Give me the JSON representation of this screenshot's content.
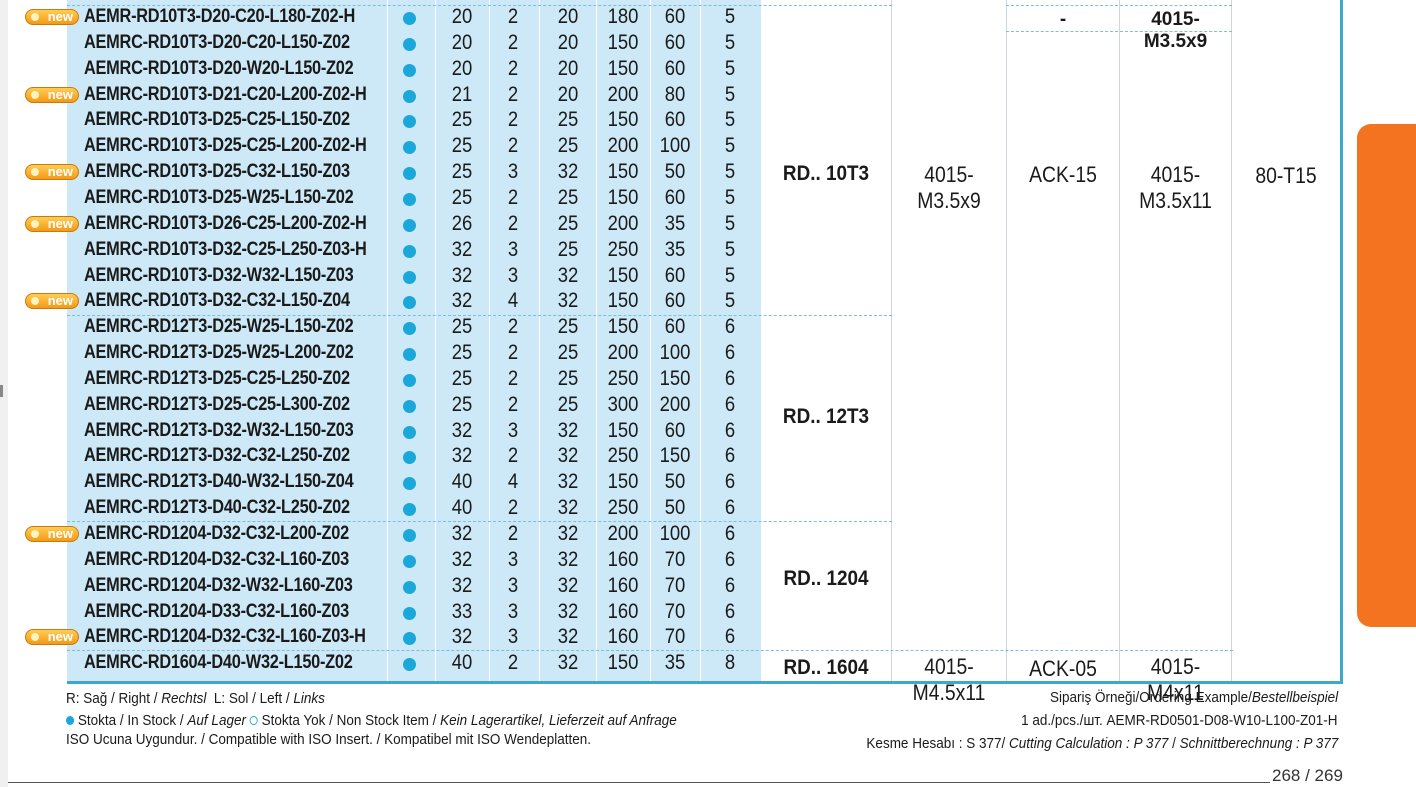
{
  "rows": [
    {
      "new": true,
      "code": "AEMR-RD10T3-D20-C20-L180-Z02-H",
      "d": "20",
      "z": "2",
      "d1": "20",
      "l": "180",
      "l1": "60",
      "s": "5"
    },
    {
      "new": false,
      "code": "AEMRC-RD10T3-D20-C20-L150-Z02",
      "d": "20",
      "z": "2",
      "d1": "20",
      "l": "150",
      "l1": "60",
      "s": "5"
    },
    {
      "new": false,
      "code": "AEMRC-RD10T3-D20-W20-L150-Z02",
      "d": "20",
      "z": "2",
      "d1": "20",
      "l": "150",
      "l1": "60",
      "s": "5"
    },
    {
      "new": true,
      "code": "AEMRC-RD10T3-D21-C20-L200-Z02-H",
      "d": "21",
      "z": "2",
      "d1": "20",
      "l": "200",
      "l1": "80",
      "s": "5"
    },
    {
      "new": false,
      "code": "AEMRC-RD10T3-D25-C25-L150-Z02",
      "d": "25",
      "z": "2",
      "d1": "25",
      "l": "150",
      "l1": "60",
      "s": "5"
    },
    {
      "new": false,
      "code": "AEMRC-RD10T3-D25-C25-L200-Z02-H",
      "d": "25",
      "z": "2",
      "d1": "25",
      "l": "200",
      "l1": "100",
      "s": "5"
    },
    {
      "new": true,
      "code": "AEMRC-RD10T3-D25-C32-L150-Z03",
      "d": "25",
      "z": "3",
      "d1": "32",
      "l": "150",
      "l1": "50",
      "s": "5"
    },
    {
      "new": false,
      "code": "AEMRC-RD10T3-D25-W25-L150-Z02",
      "d": "25",
      "z": "2",
      "d1": "25",
      "l": "150",
      "l1": "60",
      "s": "5"
    },
    {
      "new": true,
      "code": "AEMRC-RD10T3-D26-C25-L200-Z02-H",
      "d": "26",
      "z": "2",
      "d1": "25",
      "l": "200",
      "l1": "35",
      "s": "5"
    },
    {
      "new": false,
      "code": "AEMRC-RD10T3-D32-C25-L250-Z03-H",
      "d": "32",
      "z": "3",
      "d1": "25",
      "l": "250",
      "l1": "35",
      "s": "5"
    },
    {
      "new": false,
      "code": "AEMRC-RD10T3-D32-W32-L150-Z03",
      "d": "32",
      "z": "3",
      "d1": "32",
      "l": "150",
      "l1": "60",
      "s": "5"
    },
    {
      "new": true,
      "code": "AEMRC-RD10T3-D32-C32-L150-Z04",
      "d": "32",
      "z": "4",
      "d1": "32",
      "l": "150",
      "l1": "60",
      "s": "5"
    },
    {
      "new": false,
      "code": "AEMRC-RD12T3-D25-W25-L150-Z02",
      "d": "25",
      "z": "2",
      "d1": "25",
      "l": "150",
      "l1": "60",
      "s": "6"
    },
    {
      "new": false,
      "code": "AEMRC-RD12T3-D25-W25-L200-Z02",
      "d": "25",
      "z": "2",
      "d1": "25",
      "l": "200",
      "l1": "100",
      "s": "6"
    },
    {
      "new": false,
      "code": "AEMRC-RD12T3-D25-C25-L250-Z02",
      "d": "25",
      "z": "2",
      "d1": "25",
      "l": "250",
      "l1": "150",
      "s": "6"
    },
    {
      "new": false,
      "code": "AEMRC-RD12T3-D25-C25-L300-Z02",
      "d": "25",
      "z": "2",
      "d1": "25",
      "l": "300",
      "l1": "200",
      "s": "6"
    },
    {
      "new": false,
      "code": "AEMRC-RD12T3-D32-W32-L150-Z03",
      "d": "32",
      "z": "3",
      "d1": "32",
      "l": "150",
      "l1": "60",
      "s": "6"
    },
    {
      "new": false,
      "code": "AEMRC-RD12T3-D32-C32-L250-Z02",
      "d": "32",
      "z": "2",
      "d1": "32",
      "l": "250",
      "l1": "150",
      "s": "6"
    },
    {
      "new": false,
      "code": "AEMRC-RD12T3-D40-W32-L150-Z04",
      "d": "40",
      "z": "4",
      "d1": "32",
      "l": "150",
      "l1": "50",
      "s": "6"
    },
    {
      "new": false,
      "code": "AEMRC-RD12T3-D40-C32-L250-Z02",
      "d": "40",
      "z": "2",
      "d1": "32",
      "l": "250",
      "l1": "50",
      "s": "6"
    },
    {
      "new": true,
      "code": "AEMRC-RD1204-D32-C32-L200-Z02",
      "d": "32",
      "z": "2",
      "d1": "32",
      "l": "200",
      "l1": "100",
      "s": "6"
    },
    {
      "new": false,
      "code": "AEMRC-RD1204-D32-C32-L160-Z03",
      "d": "32",
      "z": "3",
      "d1": "32",
      "l": "160",
      "l1": "70",
      "s": "6"
    },
    {
      "new": false,
      "code": "AEMRC-RD1204-D32-W32-L160-Z03",
      "d": "32",
      "z": "3",
      "d1": "32",
      "l": "160",
      "l1": "70",
      "s": "6"
    },
    {
      "new": false,
      "code": "AEMRC-RD1204-D33-C32-L160-Z03",
      "d": "33",
      "z": "3",
      "d1": "32",
      "l": "160",
      "l1": "70",
      "s": "6"
    },
    {
      "new": true,
      "code": "AEMRC-RD1204-D32-C32-L160-Z03-H",
      "d": "32",
      "z": "3",
      "d1": "32",
      "l": "160",
      "l1": "70",
      "s": "6"
    },
    {
      "new": false,
      "code": "AEMRC-RD1604-D40-W32-L150-Z02",
      "d": "40",
      "z": "2",
      "d1": "32",
      "l": "150",
      "l1": "35",
      "s": "8"
    }
  ],
  "new_badge": "new",
  "groups": {
    "rd10t3": "RD.. 10T3",
    "rd12t3": "RD.. 12T3",
    "rd1204": "RD.. 1204",
    "rd1604": "RD.. 1604"
  },
  "accessories": {
    "top_dash": "-",
    "top_screw": "4015-M3.5x9",
    "screw_main": "4015-M3.5x9",
    "key_main": "ACK-15",
    "screw2_main": "4015-M3.5x11",
    "torx_main": "80-T15",
    "screw_1604": "4015-M4.5x11",
    "key_1604": "ACK-05",
    "screw2_1604": "4015-M4x11"
  },
  "footer": {
    "legend_right": "R: Sağ / Right / ",
    "legend_right_de": "Rechtsl",
    "legend_left": "L: Sol / Left / ",
    "legend_left_de": "Links",
    "in_stock": "Stokta / In Stock / ",
    "in_stock_de": "Auf Lager",
    "non_stock": "Stokta Yok / Non Stock Item / ",
    "non_stock_de": "Kein Lagerartikel, Lieferzeit auf Anfrage",
    "iso": "ISO Ucuna Uygundur. / Compatible with ISO Insert. / Kompatibel mit ISO Wendeplatten.",
    "order_title": "Sipariş Örneği/Ordering Example/",
    "order_title_de": "Bestellbeispiel",
    "order_example": "1 ad./pcs./шт.  AEMR-RD0501-D08-W10-L100-Z01-H",
    "calc_prefix": "Kesme Hesabı : S 377/ ",
    "calc_en": "Cutting Calculation : P 377",
    "calc_sep": " / ",
    "calc_de": "Schnittberechnung : P 377",
    "page": "268 / 269"
  },
  "colors": {
    "accent": "#f37321",
    "table_blue": "#cde9f7",
    "stock_dot": "#1aa7d9",
    "rule": "#3da8c9"
  }
}
